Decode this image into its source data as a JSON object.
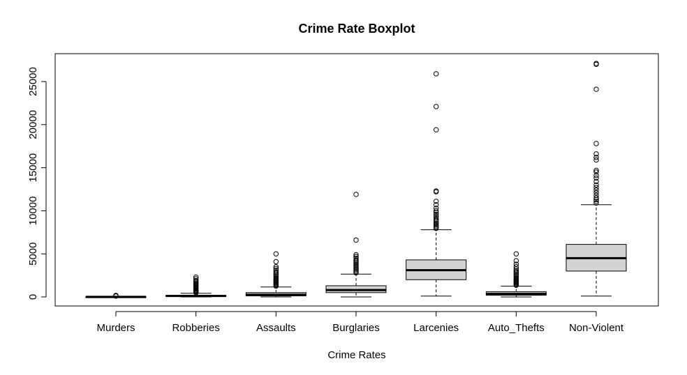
{
  "chart_data": {
    "type": "box",
    "title": "Crime Rate Boxplot",
    "xlabel": "Crime Rates",
    "ylabel": "",
    "ylim": [
      -1000,
      27500
    ],
    "yticks": [
      0,
      5000,
      10000,
      15000,
      20000,
      25000
    ],
    "ytick_labels": [
      "0",
      "5000",
      "10000",
      "15000",
      "20000",
      "25000"
    ],
    "categories": [
      "Murders",
      "Robberies",
      "Assaults",
      "Burglaries",
      "Larcenies",
      "Auto_Thefts",
      "Non-Violent"
    ],
    "box_color": "#d3d3d3",
    "boxes": [
      {
        "min": 0,
        "q1": 0,
        "median": 10,
        "q3": 30,
        "max": 70,
        "outliers": [
          100,
          140,
          180
        ]
      },
      {
        "min": 0,
        "q1": 50,
        "median": 110,
        "q3": 200,
        "max": 420,
        "outliers": [
          480,
          560,
          640,
          720,
          800,
          900,
          1000,
          1100,
          1200,
          1300,
          1400,
          1500,
          1600,
          1750,
          1900,
          2100,
          2300
        ]
      },
      {
        "min": 0,
        "q1": 120,
        "median": 250,
        "q3": 500,
        "max": 1150,
        "outliers": [
          1250,
          1350,
          1450,
          1550,
          1650,
          1750,
          1850,
          1950,
          2050,
          2150,
          2300,
          2450,
          2600,
          2750,
          2900,
          3100,
          3300,
          3500,
          4100,
          5000
        ]
      },
      {
        "min": 0,
        "q1": 500,
        "median": 800,
        "q3": 1300,
        "max": 2650,
        "outliers": [
          2800,
          2950,
          3100,
          3250,
          3400,
          3550,
          3700,
          3850,
          4000,
          4150,
          4300,
          4500,
          4700,
          4900,
          6600,
          11900
        ]
      },
      {
        "min": 100,
        "q1": 2000,
        "median": 3100,
        "q3": 4300,
        "max": 7800,
        "outliers": [
          7950,
          8100,
          8250,
          8400,
          8550,
          8700,
          8850,
          9000,
          9200,
          9400,
          9600,
          9800,
          10000,
          10300,
          10700,
          11100,
          12200,
          12300,
          19400,
          22100,
          25900
        ]
      },
      {
        "min": 0,
        "q1": 200,
        "median": 350,
        "q3": 600,
        "max": 1250,
        "outliers": [
          1350,
          1450,
          1550,
          1650,
          1750,
          1850,
          1950,
          2050,
          2150,
          2300,
          2450,
          2600,
          2750,
          2900,
          3050,
          3250,
          3500,
          3800,
          4200,
          5000
        ]
      },
      {
        "min": 100,
        "q1": 3000,
        "median": 4500,
        "q3": 6100,
        "max": 10700,
        "outliers": [
          10900,
          11100,
          11300,
          11500,
          11800,
          12100,
          12400,
          12700,
          13000,
          13400,
          13800,
          14100,
          14500,
          14700,
          15900,
          16200,
          16600,
          17800,
          24100,
          27000,
          27100
        ]
      }
    ]
  }
}
